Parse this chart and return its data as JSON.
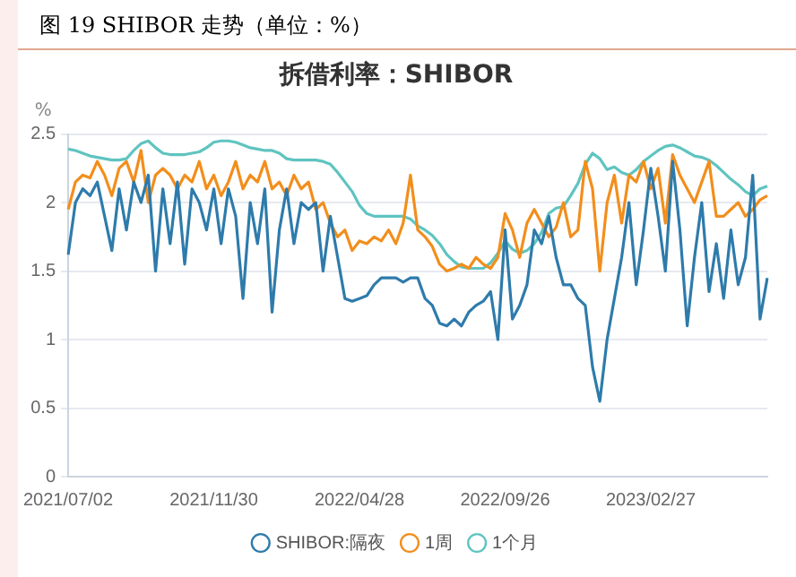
{
  "chart_data": {
    "type": "line",
    "title": "图 19 SHIBOR 走势（单位：%）",
    "subtitle": "拆借利率：SHIBOR",
    "ylabel": "%",
    "categories": [
      "2021/07/02",
      null,
      null,
      null,
      null,
      null,
      null,
      null,
      null,
      null,
      null,
      null,
      null,
      null,
      null,
      null,
      null,
      null,
      null,
      null,
      "2021/11/30",
      null,
      null,
      null,
      null,
      null,
      null,
      null,
      null,
      null,
      null,
      null,
      null,
      null,
      null,
      null,
      null,
      null,
      null,
      null,
      "2022/04/28",
      null,
      null,
      null,
      null,
      null,
      null,
      null,
      null,
      null,
      null,
      null,
      null,
      null,
      null,
      null,
      null,
      null,
      null,
      null,
      "2022/09/26",
      null,
      null,
      null,
      null,
      null,
      null,
      null,
      null,
      null,
      null,
      null,
      null,
      null,
      null,
      null,
      null,
      null,
      null,
      null,
      "2023/02/27",
      null,
      null,
      null,
      null,
      null,
      null,
      null,
      null,
      null,
      null,
      null,
      null,
      null,
      null,
      null,
      null
    ],
    "series": [
      {
        "name": "SHIBOR:隔夜",
        "color": "#2e7bab",
        "values": [
          1.62,
          2.0,
          2.1,
          2.05,
          2.15,
          1.9,
          1.65,
          2.1,
          1.8,
          2.15,
          2.0,
          2.2,
          1.5,
          2.1,
          1.7,
          2.15,
          1.55,
          2.1,
          2.0,
          1.8,
          2.1,
          1.7,
          2.1,
          1.9,
          1.3,
          2.0,
          1.7,
          2.1,
          1.2,
          1.8,
          2.1,
          1.7,
          2.0,
          1.95,
          2.0,
          1.5,
          1.9,
          1.6,
          1.3,
          1.28,
          1.3,
          1.32,
          1.4,
          1.45,
          1.45,
          1.45,
          1.42,
          1.45,
          1.45,
          1.3,
          1.25,
          1.12,
          1.1,
          1.15,
          1.1,
          1.2,
          1.25,
          1.28,
          1.35,
          1.0,
          1.8,
          1.15,
          1.25,
          1.4,
          1.8,
          1.7,
          1.9,
          1.6,
          1.4,
          1.4,
          1.3,
          1.25,
          0.8,
          0.55,
          1.0,
          1.3,
          1.6,
          2.0,
          1.4,
          1.8,
          2.25,
          1.9,
          1.5,
          2.3,
          1.8,
          1.1,
          1.6,
          2.0,
          1.35,
          1.7,
          1.3,
          1.8,
          1.4,
          1.6,
          2.2,
          1.15,
          1.45
        ]
      },
      {
        "name": "1周",
        "color": "#f28e1c",
        "values": [
          1.95,
          2.15,
          2.2,
          2.18,
          2.3,
          2.2,
          2.05,
          2.25,
          2.3,
          2.15,
          2.38,
          2.0,
          2.2,
          2.25,
          2.2,
          2.1,
          2.2,
          2.15,
          2.3,
          2.1,
          2.2,
          2.05,
          2.15,
          2.3,
          2.1,
          2.2,
          2.15,
          2.3,
          2.1,
          2.15,
          2.05,
          2.2,
          2.1,
          2.15,
          1.95,
          2.0,
          1.85,
          1.75,
          1.8,
          1.65,
          1.72,
          1.7,
          1.75,
          1.72,
          1.8,
          1.7,
          1.85,
          2.2,
          1.8,
          1.75,
          1.68,
          1.55,
          1.5,
          1.52,
          1.55,
          1.52,
          1.6,
          1.55,
          1.52,
          1.6,
          1.92,
          1.8,
          1.6,
          1.85,
          1.95,
          1.85,
          1.75,
          1.82,
          2.0,
          1.75,
          1.8,
          2.3,
          2.1,
          1.5,
          2.0,
          2.2,
          1.85,
          2.2,
          2.15,
          2.3,
          2.1,
          2.25,
          1.85,
          2.35,
          2.2,
          2.1,
          2.0,
          2.15,
          2.3,
          1.9,
          1.9,
          1.95,
          2.0,
          1.9,
          1.95,
          2.02,
          2.05
        ]
      },
      {
        "name": "1个月",
        "color": "#5fc4c0",
        "values": [
          2.39,
          2.38,
          2.36,
          2.34,
          2.33,
          2.32,
          2.31,
          2.31,
          2.32,
          2.38,
          2.43,
          2.45,
          2.4,
          2.36,
          2.35,
          2.35,
          2.35,
          2.36,
          2.37,
          2.4,
          2.44,
          2.45,
          2.45,
          2.44,
          2.42,
          2.4,
          2.39,
          2.38,
          2.38,
          2.36,
          2.32,
          2.31,
          2.31,
          2.31,
          2.31,
          2.3,
          2.28,
          2.22,
          2.15,
          2.08,
          1.98,
          1.92,
          1.9,
          1.9,
          1.9,
          1.9,
          1.9,
          1.88,
          1.83,
          1.8,
          1.76,
          1.7,
          1.62,
          1.57,
          1.53,
          1.52,
          1.52,
          1.52,
          1.56,
          1.63,
          1.72,
          1.66,
          1.63,
          1.65,
          1.7,
          1.78,
          1.92,
          1.96,
          1.97,
          2.05,
          2.14,
          2.28,
          2.36,
          2.32,
          2.24,
          2.26,
          2.22,
          2.2,
          2.24,
          2.3,
          2.34,
          2.38,
          2.41,
          2.42,
          2.4,
          2.37,
          2.34,
          2.33,
          2.31,
          2.27,
          2.22,
          2.17,
          2.13,
          2.08,
          2.05,
          2.1,
          2.12
        ]
      }
    ],
    "ylim": [
      0,
      2.5
    ],
    "yticks": [
      0,
      0.5,
      1,
      1.5,
      2,
      2.5
    ],
    "grid": "y",
    "legend": "bottom"
  }
}
